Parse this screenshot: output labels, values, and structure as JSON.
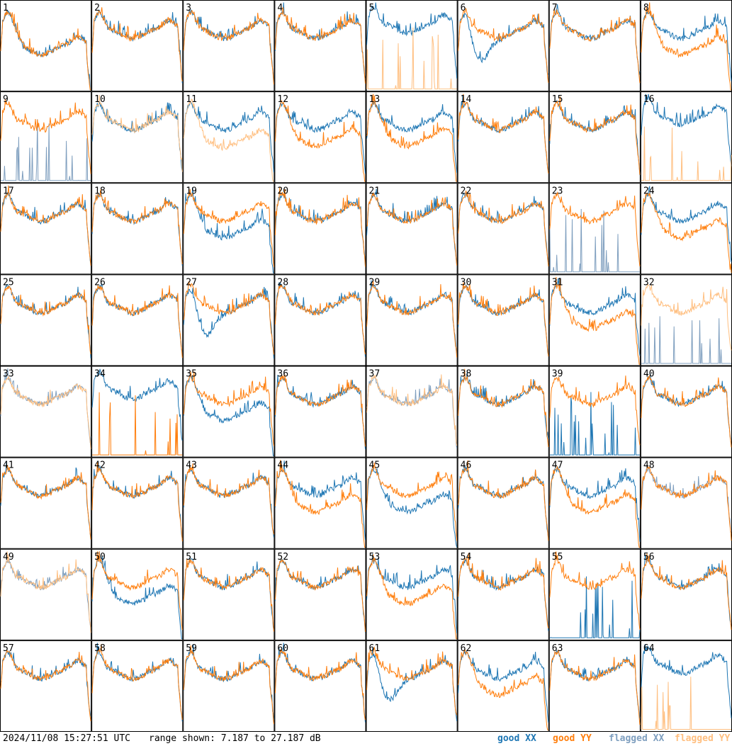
{
  "footer": {
    "timestamp": "2024/11/08 15:27:51 UTC",
    "range": "range shown: 7.187 to 27.187 dB"
  },
  "legend": [
    {
      "key": "good_xx",
      "label": "good XX",
      "color": "#1f77b4"
    },
    {
      "key": "good_yy",
      "label": "good YY",
      "color": "#ff7f0e"
    },
    {
      "key": "flagged_xx",
      "label": "flagged XX",
      "color": "#7f9fbf"
    },
    {
      "key": "flagged_yy",
      "label": "flagged YY",
      "color": "#ffbf80"
    }
  ],
  "chart_data": {
    "type": "line",
    "y_range_db": [
      7.187,
      27.187
    ],
    "grid_layout": {
      "rows": 8,
      "cols": 8
    },
    "series_colors": {
      "good_xx": "#1f77b4",
      "good_yy": "#ff7f0e",
      "flagged_xx": "#7f9fbf",
      "flagged_yy": "#ffbf80"
    },
    "panels": [
      {
        "label": "1",
        "xx": "low",
        "yy": "low"
      },
      {
        "label": "2",
        "xx": "normal",
        "yy": "normal"
      },
      {
        "label": "3",
        "xx": "normal",
        "yy": "normal"
      },
      {
        "label": "4",
        "xx": "normal",
        "yy": "normal"
      },
      {
        "label": "5",
        "xx": "high",
        "yy": "flagged_spiky"
      },
      {
        "label": "6",
        "xx": "dip",
        "yy": "normal"
      },
      {
        "label": "7",
        "xx": "normal",
        "yy": "normal"
      },
      {
        "label": "8",
        "xx": "normal",
        "yy": "low"
      },
      {
        "label": "9",
        "xx": "flagged_spiky",
        "yy": "normal"
      },
      {
        "label": "10",
        "xx": "normal",
        "yy": "flagged"
      },
      {
        "label": "11",
        "xx": "normal",
        "yy": "flagged_low"
      },
      {
        "label": "12",
        "xx": "normal",
        "yy": "low"
      },
      {
        "label": "13",
        "xx": "normal",
        "yy": "low"
      },
      {
        "label": "14",
        "xx": "normal",
        "yy": "normal"
      },
      {
        "label": "15",
        "xx": "normal",
        "yy": "normal"
      },
      {
        "label": "16",
        "xx": "high",
        "yy": "flagged_spiky"
      },
      {
        "label": "17",
        "xx": "normal",
        "yy": "normal"
      },
      {
        "label": "18",
        "xx": "normal",
        "yy": "normal"
      },
      {
        "label": "19",
        "xx": "low",
        "yy": "normal"
      },
      {
        "label": "20",
        "xx": "normal",
        "yy": "normal"
      },
      {
        "label": "21",
        "xx": "normal",
        "yy": "normal"
      },
      {
        "label": "22",
        "xx": "normal",
        "yy": "normal"
      },
      {
        "label": "23",
        "xx": "flagged_spiky",
        "yy": "normal"
      },
      {
        "label": "24",
        "xx": "normal",
        "yy": "low"
      },
      {
        "label": "25",
        "xx": "normal",
        "yy": "normal"
      },
      {
        "label": "26",
        "xx": "normal",
        "yy": "normal"
      },
      {
        "label": "27",
        "xx": "dip",
        "yy": "normal"
      },
      {
        "label": "28",
        "xx": "normal",
        "yy": "normal"
      },
      {
        "label": "29",
        "xx": "normal",
        "yy": "normal"
      },
      {
        "label": "30",
        "xx": "normal",
        "yy": "normal"
      },
      {
        "label": "31",
        "xx": "normal",
        "yy": "low"
      },
      {
        "label": "32",
        "xx": "flagged_spiky",
        "yy": "flagged"
      },
      {
        "label": "33",
        "xx": "flagged",
        "yy": "flagged"
      },
      {
        "label": "34",
        "xx": "high",
        "yy": "spiky"
      },
      {
        "label": "35",
        "xx": "low",
        "yy": "normal"
      },
      {
        "label": "36",
        "xx": "normal",
        "yy": "normal"
      },
      {
        "label": "37",
        "xx": "flagged",
        "yy": "flagged"
      },
      {
        "label": "38",
        "xx": "normal",
        "yy": "normal"
      },
      {
        "label": "39",
        "xx": "spiky",
        "yy": "normal"
      },
      {
        "label": "40",
        "xx": "normal",
        "yy": "normal"
      },
      {
        "label": "41",
        "xx": "normal",
        "yy": "normal"
      },
      {
        "label": "42",
        "xx": "normal",
        "yy": "normal"
      },
      {
        "label": "43",
        "xx": "normal",
        "yy": "normal"
      },
      {
        "label": "44",
        "xx": "normal",
        "yy": "low"
      },
      {
        "label": "45",
        "xx": "low",
        "yy": "normal"
      },
      {
        "label": "46",
        "xx": "normal",
        "yy": "normal"
      },
      {
        "label": "47",
        "xx": "normal",
        "yy": "low"
      },
      {
        "label": "48",
        "xx": "flagged",
        "yy": "normal"
      },
      {
        "label": "49",
        "xx": "flagged",
        "yy": "flagged"
      },
      {
        "label": "50",
        "xx": "low",
        "yy": "normal"
      },
      {
        "label": "51",
        "xx": "normal",
        "yy": "normal"
      },
      {
        "label": "52",
        "xx": "normal",
        "yy": "normal"
      },
      {
        "label": "53",
        "xx": "normal",
        "yy": "low"
      },
      {
        "label": "54",
        "xx": "normal",
        "yy": "normal"
      },
      {
        "label": "55",
        "xx": "spiky",
        "yy": "normal"
      },
      {
        "label": "56",
        "xx": "normal",
        "yy": "normal"
      },
      {
        "label": "57",
        "xx": "normal",
        "yy": "normal"
      },
      {
        "label": "58",
        "xx": "normal",
        "yy": "normal"
      },
      {
        "label": "59",
        "xx": "normal",
        "yy": "normal"
      },
      {
        "label": "60",
        "xx": "normal",
        "yy": "normal"
      },
      {
        "label": "61",
        "xx": "dip",
        "yy": "normal"
      },
      {
        "label": "62",
        "xx": "normal",
        "yy": "low"
      },
      {
        "label": "63",
        "xx": "normal",
        "yy": "normal"
      },
      {
        "label": "64",
        "xx": "high",
        "yy": "flagged_spiky"
      }
    ]
  }
}
